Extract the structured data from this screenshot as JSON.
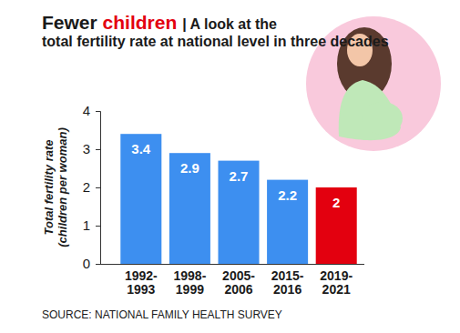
{
  "chart_data": {
    "type": "bar",
    "title": "Fewer children",
    "subtitle": "| A look at the total fertility rate at national level in three decades",
    "y_label": "Total fertility rate (children per woman)",
    "categories": [
      "1992-1993",
      "1998-1999",
      "2005-2006",
      "2015-2016",
      "2019-2021"
    ],
    "values": [
      3.4,
      2.9,
      2.7,
      2.2,
      2
    ],
    "colors": [
      "#3d8ff0",
      "#3d8ff0",
      "#3d8ff0",
      "#3d8ff0",
      "#e3000f"
    ],
    "ylim": [
      0,
      4
    ],
    "yticks": [
      0,
      1,
      2,
      3,
      4
    ],
    "grid": false,
    "data_labels": true,
    "source": "SOURCE: NATIONAL FAMILY HEALTH SURVEY"
  }
}
